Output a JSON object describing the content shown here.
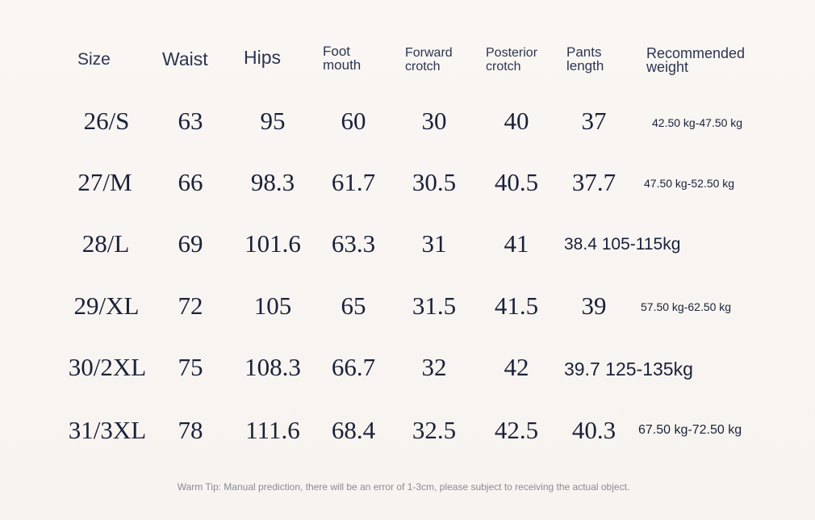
{
  "headers": {
    "size": "Size",
    "waist": "Waist",
    "hips": "Hips",
    "foot_mouth": [
      "Foot",
      "mouth"
    ],
    "forward_crotch": [
      "Forward",
      "crotch"
    ],
    "posterior_crotch": [
      "Posterior",
      "crotch"
    ],
    "pants_length": [
      "Pants",
      "length"
    ],
    "recommended_weight": [
      "Recommended",
      "weight"
    ]
  },
  "rows": [
    {
      "size": "26/S",
      "waist": "63",
      "hips": "95",
      "foot_mouth": "60",
      "forward_crotch": "30",
      "posterior_crotch": "40",
      "pants_length": "37",
      "weight": "42.50 kg-47.50 kg"
    },
    {
      "size": "27/M",
      "waist": "66",
      "hips": "98.3",
      "foot_mouth": "61.7",
      "forward_crotch": "30.5",
      "posterior_crotch": "40.5",
      "pants_length": "37.7",
      "weight": "47.50 kg-52.50 kg"
    },
    {
      "size": "28/L",
      "waist": "69",
      "hips": "101.6",
      "foot_mouth": "63.3",
      "forward_crotch": "31",
      "posterior_crotch": "41",
      "pants_length": "38.4 105-115kg",
      "weight": ""
    },
    {
      "size": "29/XL",
      "waist": "72",
      "hips": "105",
      "foot_mouth": "65",
      "forward_crotch": "31.5",
      "posterior_crotch": "41.5",
      "pants_length": "39",
      "weight": "57.50 kg-62.50 kg"
    },
    {
      "size": "30/2XL",
      "waist": "75",
      "hips": "108.3",
      "foot_mouth": "66.7",
      "forward_crotch": "32",
      "posterior_crotch": "42",
      "pants_length": "39.7 125-135kg",
      "weight": ""
    },
    {
      "size": "31/3XL",
      "waist": "78",
      "hips": "111.6",
      "foot_mouth": "68.4",
      "forward_crotch": "32.5",
      "posterior_crotch": "42.5",
      "pants_length": "40.3",
      "weight": "67.50 kg-72.50 kg"
    }
  ],
  "warm_tip": "Warm Tip: Manual prediction, there will be an error of 1-3cm, please subject to receiving the actual object."
}
